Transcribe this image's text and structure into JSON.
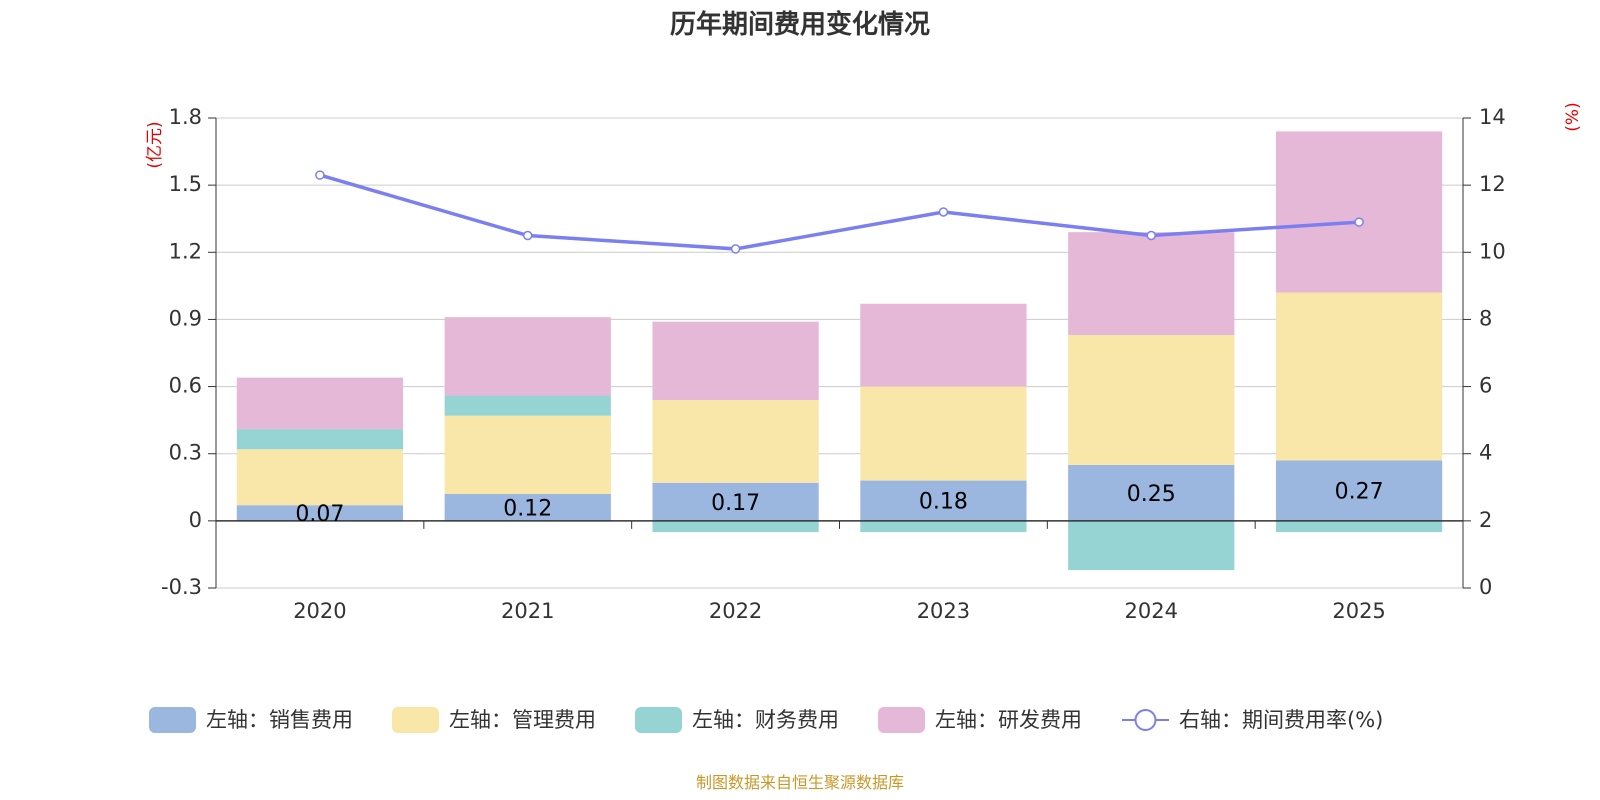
{
  "chart_data": {
    "type": "bar",
    "stacked": true,
    "title": "历年期间费用变化情况",
    "categories": [
      "2020",
      "2021",
      "2022",
      "2023",
      "2024",
      "2025"
    ],
    "left_axis": {
      "unit": "(亿元)",
      "ylim": [
        -0.3,
        1.8
      ],
      "ticks": [
        "-0.3",
        "0",
        "0.3",
        "0.6",
        "0.9",
        "1.2",
        "1.5",
        "1.8"
      ]
    },
    "right_axis": {
      "unit": "(%)",
      "ylim": [
        0,
        14
      ],
      "ticks": [
        "0",
        "2",
        "4",
        "6",
        "8",
        "10",
        "12",
        "14"
      ]
    },
    "series": [
      {
        "name": "左轴：销售费用",
        "type": "bar",
        "axis": "left",
        "color": "#9bb7e0",
        "values": [
          0.07,
          0.12,
          0.17,
          0.18,
          0.25,
          0.27
        ],
        "labels": [
          "0.07",
          "0.12",
          "0.17",
          "0.18",
          "0.25",
          "0.27"
        ]
      },
      {
        "name": "左轴：管理费用",
        "type": "bar",
        "axis": "left",
        "color": "#f8e7a8",
        "values": [
          0.25,
          0.35,
          0.37,
          0.42,
          0.58,
          0.75
        ]
      },
      {
        "name": "左轴：财务费用",
        "type": "bar",
        "axis": "left",
        "color": "#96d4d4",
        "values": [
          0.09,
          0.09,
          -0.05,
          -0.05,
          -0.22,
          -0.05
        ]
      },
      {
        "name": "左轴：研发费用",
        "type": "bar",
        "axis": "left",
        "color": "#e6b8d8",
        "values": [
          0.23,
          0.35,
          0.35,
          0.37,
          0.46,
          0.72
        ]
      },
      {
        "name": "右轴：期间费用率(%)",
        "type": "line",
        "axis": "right",
        "color": "#7b7ff0",
        "values": [
          12.3,
          10.5,
          10.1,
          11.2,
          10.5,
          10.9
        ]
      }
    ],
    "legend_position": "bottom",
    "grid": true
  },
  "source": {
    "text": "制图数据来自恒生聚源数据库",
    "color": "#c8992a"
  },
  "colors": {
    "axis": "#333333",
    "grid": "#cccccc",
    "unit": "#e60000"
  }
}
